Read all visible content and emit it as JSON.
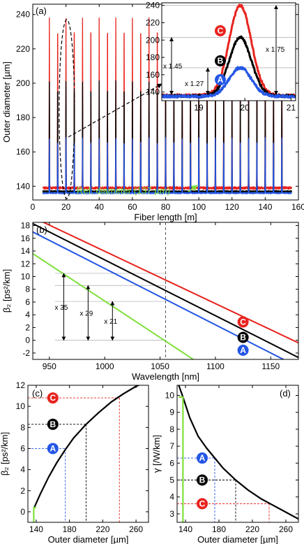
{
  "chart_data": [
    {
      "id": "a",
      "panel_label": "(a)",
      "type": "line",
      "xlabel": "Fiber length [m]",
      "ylabel": "Outer diameter [µm]",
      "xlim": [
        0,
        160
      ],
      "ylim": [
        132,
        246
      ],
      "xticks": [
        0,
        20,
        40,
        60,
        80,
        100,
        120,
        140,
        160
      ],
      "yticks": [
        140,
        160,
        180,
        200,
        220,
        240
      ],
      "peak_positions": [
        10,
        15,
        20,
        25,
        30,
        35,
        40,
        45,
        50,
        55,
        60,
        65,
        70,
        75,
        80,
        85,
        90,
        95,
        100,
        105,
        110,
        115,
        120,
        125,
        130,
        135,
        140,
        145,
        150
      ],
      "series": [
        {
          "name": "C",
          "color": "#e8231e",
          "baseline": 139,
          "peak": 238
        },
        {
          "name": "B",
          "color": "#000000",
          "baseline": 137,
          "peak": 201
        },
        {
          "name": "A",
          "color": "#2456e6",
          "baseline": 136,
          "peak": 168
        },
        {
          "name": "Ref",
          "color": "#7ee03a",
          "baseline": 136.5,
          "peak": 136.5
        }
      ],
      "ref_annotation": "Ref. diameter (137 µm)",
      "inset": {
        "xlim": [
          18.2,
          21.1
        ],
        "ylim": [
          130,
          243
        ],
        "xticks": [
          19,
          20,
          21
        ],
        "yticks": [
          140,
          160,
          180,
          200,
          220,
          240
        ],
        "peak_center": 19.9,
        "ratio_labels": [
          "x 1.45",
          "x 1.27",
          "x 1.75"
        ],
        "series": [
          {
            "name": "C",
            "color": "#e8231e",
            "base": 136,
            "peak": 240
          },
          {
            "name": "B",
            "color": "#000000",
            "base": 135.5,
            "peak": 203
          },
          {
            "name": "A",
            "color": "#2456e6",
            "base": 135,
            "peak": 168
          }
        ]
      }
    },
    {
      "id": "b",
      "panel_label": "(b)",
      "type": "line",
      "xlabel": "Wavelength [nm]",
      "ylabel": "β₂ [ps²/km]",
      "xlim": [
        935,
        1175
      ],
      "ylim": [
        -3,
        18.5
      ],
      "xticks": [
        950,
        1000,
        1050,
        1100,
        1150
      ],
      "yticks": [
        -2,
        0,
        2,
        4,
        6,
        8,
        10,
        12,
        14,
        16,
        18
      ],
      "vline": 1055,
      "series": [
        {
          "name": "C",
          "color": "#e8231e",
          "x": [
            935,
            1175
          ],
          "y": [
            19.3,
            -0.4
          ]
        },
        {
          "name": "B",
          "color": "#000000",
          "x": [
            935,
            1175
          ],
          "y": [
            18.3,
            -2.7
          ]
        },
        {
          "name": "A",
          "color": "#2456e6",
          "x": [
            935,
            1175
          ],
          "y": [
            17.0,
            -4.2
          ]
        },
        {
          "name": "Ref",
          "color": "#7ee03a",
          "x": [
            935,
            1080
          ],
          "y": [
            13.6,
            -3.0
          ]
        }
      ],
      "ratio_labels": [
        "x 35",
        "x 29",
        "x 21"
      ],
      "ratio_levels": [
        10.5,
        8.6,
        6.1
      ]
    },
    {
      "id": "c",
      "panel_label": "(c)",
      "type": "line",
      "xlabel": "Outer diameter [µm]",
      "ylabel": "β₂ [ps²/km]",
      "xlim": [
        130,
        275
      ],
      "ylim": [
        -1,
        12
      ],
      "xticks": [
        140,
        180,
        220,
        260
      ],
      "yticks": [
        0,
        2,
        4,
        6,
        8,
        10,
        12
      ],
      "curve": {
        "x": [
          137,
          145,
          155,
          165,
          175,
          185,
          200,
          215,
          230,
          245,
          260,
          275
        ],
        "y": [
          0.3,
          1.7,
          3.3,
          4.7,
          5.9,
          7.0,
          8.3,
          9.4,
          10.4,
          11.2,
          11.9,
          12.4
        ]
      },
      "points": [
        {
          "name": "C",
          "color": "#e8231e",
          "x": 240,
          "y": 10.8
        },
        {
          "name": "B",
          "color": "#000000",
          "x": 200,
          "y": 8.3
        },
        {
          "name": "A",
          "color": "#2456e6",
          "x": 175,
          "y": 6.0
        },
        {
          "name": "Ref",
          "color": "#7ee03a",
          "x": 137,
          "y": 0.3
        }
      ]
    },
    {
      "id": "d",
      "panel_label": "(d)",
      "type": "line",
      "xlabel": "Outer diameter [µm]",
      "ylabel": "γ [/W/km]",
      "xlim": [
        130,
        275
      ],
      "ylim": [
        2.5,
        10.6
      ],
      "xticks": [
        140,
        180,
        220,
        260
      ],
      "yticks": [
        3,
        4,
        5,
        6,
        7,
        8,
        9,
        10
      ],
      "curve": {
        "x": [
          132,
          137,
          145,
          155,
          165,
          175,
          185,
          200,
          215,
          230,
          245,
          260,
          275
        ],
        "y": [
          10.6,
          9.9,
          8.7,
          7.6,
          6.9,
          6.3,
          5.7,
          5.0,
          4.4,
          3.9,
          3.5,
          3.1,
          2.7
        ]
      },
      "points": [
        {
          "name": "A",
          "color": "#2456e6",
          "x": 175,
          "y": 6.3
        },
        {
          "name": "B",
          "color": "#000000",
          "x": 200,
          "y": 5.0
        },
        {
          "name": "C",
          "color": "#e8231e",
          "x": 240,
          "y": 3.6
        },
        {
          "name": "Ref",
          "color": "#7ee03a",
          "x": 137,
          "y": 9.9
        }
      ]
    }
  ]
}
